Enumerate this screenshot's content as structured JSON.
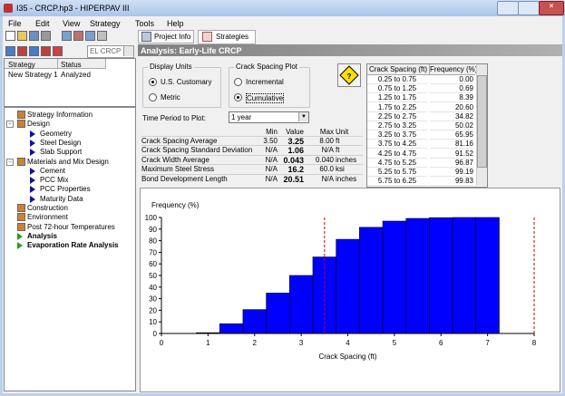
{
  "window": {
    "title": "I35 - CRCP.hp3 - HIPERPAV III"
  },
  "menu": [
    "File",
    "Edit",
    "View",
    "Strategy",
    "Tools",
    "Help"
  ],
  "tabs": [
    "Project Info",
    "Strategies"
  ],
  "toolbar": {
    "combo": "EL CRCP"
  },
  "header": "Analysis: Early-Life CRCP",
  "strategy_list": {
    "columns": [
      "Strategy",
      "Status"
    ],
    "rows": [
      [
        "New Strategy 1",
        "Analyzed"
      ]
    ]
  },
  "tree": [
    "Strategy Information",
    "Design",
    "Geometry",
    "Steel Design",
    "Slab Support",
    "Materials and Mix Design",
    "Cement",
    "PCC Mix",
    "PCC Properties",
    "Maturity Data",
    "Construction",
    "Environment",
    "Post 72-hour Temperatures",
    "Analysis",
    "Evaporation Rate Analysis"
  ],
  "display_units": {
    "title": "Display Units",
    "options": [
      "U.S. Customary",
      "Metric"
    ],
    "selected": 0
  },
  "crack_plot": {
    "title": "Crack Spacing Plot",
    "options": [
      "Incremental",
      "Cumulative"
    ],
    "selected": 1
  },
  "time_period": {
    "label": "Time Period to Plot:",
    "value": "1 year"
  },
  "results": {
    "columns": [
      "Min",
      "Value",
      "Max",
      "Unit"
    ],
    "rows": [
      [
        "Crack Spacing Average",
        "3.50",
        "3.25",
        "8.00",
        "ft"
      ],
      [
        "Crack Spacing Standard Deviation",
        "N/A",
        "1.06",
        "N/A",
        "ft"
      ],
      [
        "Crack Width Average",
        "N/A",
        "0.043",
        "0.040",
        "inches"
      ],
      [
        "Maximum Steel Stress",
        "N/A",
        "16.2",
        "60.0",
        "ksi"
      ],
      [
        "Bond Development Length",
        "N/A",
        "20.51",
        "N/A",
        "inches"
      ]
    ]
  },
  "frequency_table": {
    "columns": [
      "Crack Spacing (ft)",
      "Frequency (%)"
    ],
    "rows": [
      [
        "0.25 to 0.75",
        "0.00"
      ],
      [
        "0.75 to 1.25",
        "0.69"
      ],
      [
        "1.25 to 1.75",
        "8.39"
      ],
      [
        "1.75 to 2.25",
        "20.60"
      ],
      [
        "2.25 to 2.75",
        "34.82"
      ],
      [
        "2.75 to 3.25",
        "50.02"
      ],
      [
        "3.25 to 3.75",
        "65.95"
      ],
      [
        "3.75 to 4.25",
        "81.16"
      ],
      [
        "4.25 to 4.75",
        "91.52"
      ],
      [
        "4.75 to 5.25",
        "96.87"
      ],
      [
        "5.25 to 5.75",
        "99.19"
      ],
      [
        "5.75 to 6.25",
        "99.83"
      ]
    ]
  },
  "chart_data": {
    "type": "histogram",
    "ylabel": "Frequency (%)",
    "xlabel": "Crack Spacing (ft)",
    "bins": [
      0.25,
      0.75,
      1.25,
      1.75,
      2.25,
      2.75,
      3.25,
      3.75,
      4.25,
      4.75,
      5.25,
      5.75,
      6.25,
      6.75,
      7.25
    ],
    "values": [
      0,
      0.69,
      8.39,
      20.6,
      34.82,
      50.02,
      65.95,
      81.16,
      91.52,
      96.87,
      99.19,
      99.83,
      100,
      100
    ],
    "color": "#0000ff",
    "markers": [
      3.5,
      8
    ],
    "marker_color": "#cc0000",
    "xlim": [
      0,
      8
    ],
    "xticks": [
      0,
      1,
      2,
      3,
      4,
      5,
      6,
      7,
      8
    ],
    "ylim": [
      0,
      100
    ],
    "yticks": [
      0,
      10,
      20,
      30,
      40,
      50,
      60,
      70,
      80,
      90,
      100
    ]
  }
}
